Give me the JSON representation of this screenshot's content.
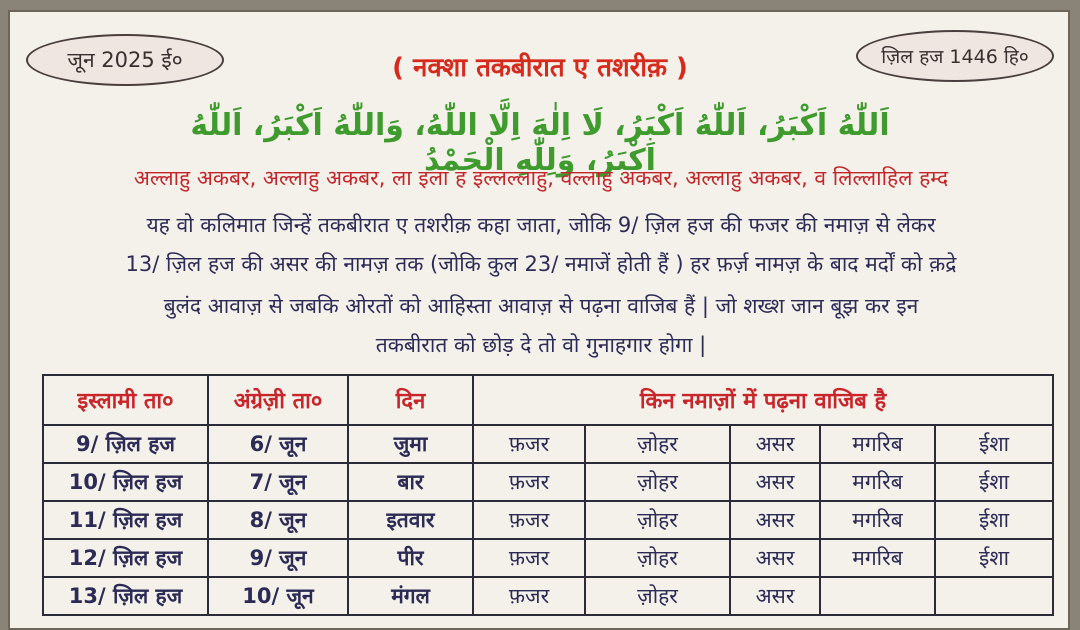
{
  "header": {
    "date_en": "जून 2025 ई०",
    "date_hijri": "ज़िल हज 1446 हि०",
    "title": "( नक्शा तकबीरात ए तशरीक़ )"
  },
  "arabic_text": "اَللّٰهُ اَكْبَرُ، اَللّٰهُ اَكْبَرُ، لَا اِلٰهَ اِلَّا اللّٰهُ، وَاللّٰهُ اَكْبَرُ، اَللّٰهُ اَكْبَرُ، وَلِلّٰهِ الْحَمْدُ",
  "body": {
    "line1": "अल्लाहु अकबर, अल्लाहु अकबर, ला इला ह इल्लल्लाहु, वल्लाहु अकबर, अल्लाहु अकबर, व लिल्लाहिल हम्द",
    "line2": "यह वो कलिमात जिन्हें तकबीरात ए तशरीक़ कहा जाता, जोकि 9/ ज़िल हज की फजर की नमाज़ से लेकर",
    "line3": "13/ ज़िल हज की असर की नामज़ तक (जोकि कुल 23/ नमाजें होती हैं ) हर फ़र्ज़ नामज़ के बाद मर्दों को क़द्रे",
    "line4": "बुलंद आवाज़ से जबकि ओरतों को आहिस्ता आवाज़ से पढ़ना वाजिब हैं | जो शख्श जान बूझ कर इन",
    "line5": "तकबीरात को छोड़ दे तो वो गुनाहगार होगा |"
  },
  "table": {
    "headers": [
      "इस्लामी ता०",
      "अंग्रेज़ी ता०",
      "दिन",
      "किन नमाज़ों में पढ़ना वाजिब है"
    ],
    "rows": [
      [
        "9/ ज़िल हज",
        "6/ जून",
        "जुमा",
        "फ़जर",
        "ज़ोहर",
        "असर",
        "मगरिब",
        "ईशा"
      ],
      [
        "10/ ज़िल हज",
        "7/ जून",
        "बार",
        "फ़जर",
        "ज़ोहर",
        "असर",
        "मगरिब",
        "ईशा"
      ],
      [
        "11/ ज़िल हज",
        "8/ जून",
        "इतवार",
        "फ़जर",
        "ज़ोहर",
        "असर",
        "मगरिब",
        "ईशा"
      ],
      [
        "12/ ज़िल हज",
        "9/ जून",
        "पीर",
        "फ़जर",
        "ज़ोहर",
        "असर",
        "मगरिब",
        "ईशा"
      ],
      [
        "13/ ज़िल हज",
        "10/ जून",
        "मंगल",
        "फ़जर",
        "ज़ोहर",
        "असर",
        "",
        ""
      ]
    ]
  },
  "colors": {
    "title": "#d62a1d",
    "arabic": "#3f9b2e",
    "body": "#2c2b55",
    "header_row": "#c8262a"
  }
}
